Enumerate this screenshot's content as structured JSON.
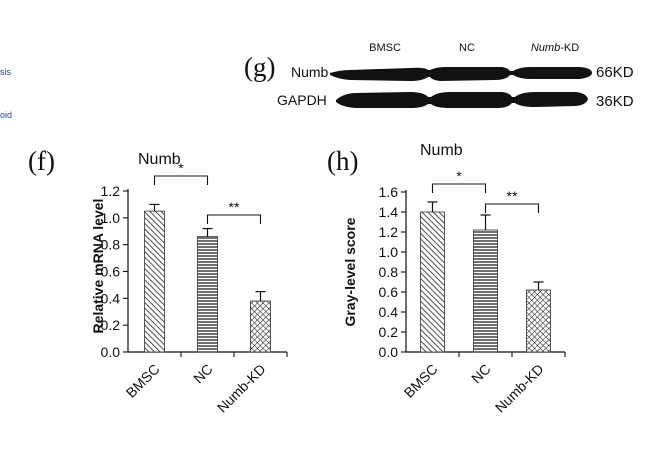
{
  "cropped_fragments": [
    "sis",
    "oid"
  ],
  "blot": {
    "panel_label": "(g)",
    "lanes": [
      "BMSC",
      "NC",
      "-KD"
    ],
    "lane3_italic": "Numb",
    "rows": [
      {
        "protein": "Numb",
        "size": "66KD"
      },
      {
        "protein": "GAPDH",
        "size": "36KD"
      }
    ]
  },
  "chart_data": [
    {
      "panel_label": "(f)",
      "type": "bar",
      "title": "Numb",
      "ylabel": "Relative mRNA level",
      "xlabel": "",
      "categories": [
        "BMSC",
        "NC",
        "Numb-KD"
      ],
      "values": [
        1.05,
        0.86,
        0.38
      ],
      "errors": [
        0.05,
        0.06,
        0.07
      ],
      "ylim": [
        0,
        1.2
      ],
      "yticks": [
        "0.0",
        "0.2",
        "0.4",
        "0.6",
        "0.8",
        "1.0",
        "1.2"
      ],
      "significance": [
        {
          "from": 0,
          "to": 1,
          "label": "*"
        },
        {
          "from": 1,
          "to": 2,
          "label": "**"
        }
      ],
      "grid": false
    },
    {
      "panel_label": "(h)",
      "type": "bar",
      "title": "Numb",
      "ylabel": "Gray-level score",
      "xlabel": "",
      "categories": [
        "BMSC",
        "NC",
        "Numb-KD"
      ],
      "values": [
        1.4,
        1.22,
        0.62
      ],
      "errors": [
        0.1,
        0.15,
        0.08
      ],
      "ylim": [
        0,
        1.6
      ],
      "yticks": [
        "0.0",
        "0.2",
        "0.4",
        "0.6",
        "0.8",
        "1.0",
        "1.2",
        "1.4",
        "1.6"
      ],
      "significance": [
        {
          "from": 0,
          "to": 1,
          "label": "*"
        },
        {
          "from": 1,
          "to": 2,
          "label": "**"
        }
      ],
      "grid": false
    }
  ]
}
